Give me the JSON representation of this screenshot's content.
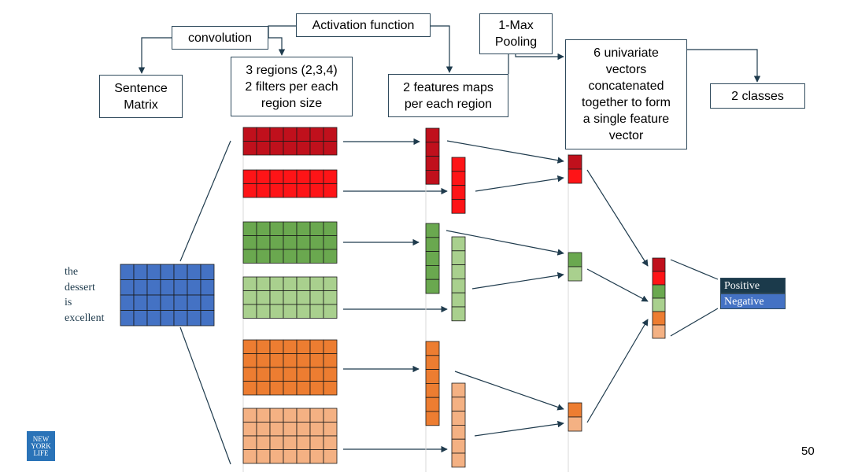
{
  "labels": {
    "convolution": "convolution",
    "activation": "Activation function",
    "pooling": "1-Max\nPooling",
    "sentence_matrix": "Sentence\nMatrix",
    "regions": "3 regions (2,3,4)\n2 filters per each\nregion size",
    "feature_maps": "2 features maps\nper each region",
    "univariate": "6 univariate\nvectors\nconcatenated\ntogether to form\na single feature\nvector",
    "classes": "2 classes"
  },
  "sentence_words": [
    "the",
    "dessert",
    "is",
    "excellent"
  ],
  "class_labels": [
    "Positive",
    "Negative"
  ],
  "page_number": "50",
  "logo_text": [
    "NEW",
    "YORK",
    "LIFE"
  ],
  "colors": {
    "dark_red": "#c0101c",
    "red": "#fe1417",
    "dark_green": "#6aa84f",
    "light_green": "#a9d08e",
    "dark_orange": "#ed7d31",
    "light_orange": "#f4b183",
    "blue": "#4472c4",
    "navy": "#1b3a4b",
    "line": "#1f3b4d"
  }
}
